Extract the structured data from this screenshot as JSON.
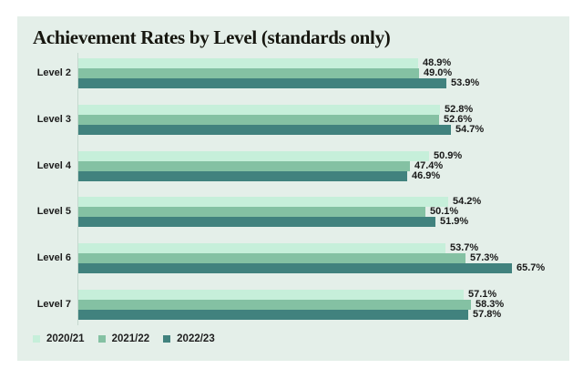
{
  "title": "Achievement Rates by Level (standards only)",
  "colors": {
    "page_bg": "#ffffff",
    "panel_bg": "#e4efe9",
    "axis_line": "#c6d8cf",
    "text": "#1c1c1c",
    "series": [
      "#c6efda",
      "#84c1a3",
      "#41827e"
    ]
  },
  "chart_data": {
    "type": "bar",
    "orientation": "horizontal",
    "title": "Achievement Rates by Level (standards only)",
    "categories": [
      "Level 2",
      "Level 3",
      "Level 4",
      "Level 5",
      "Level 6",
      "Level 7"
    ],
    "series": [
      {
        "name": "2020/21",
        "color": "#c6efda",
        "values": [
          48.9,
          52.8,
          50.9,
          54.2,
          53.7,
          57.1
        ],
        "labels": [
          "48.9%",
          "52.8%",
          "50.9%",
          "54.2%",
          "53.7%",
          "57.1%"
        ]
      },
      {
        "name": "2021/22",
        "color": "#84c1a3",
        "values": [
          49.0,
          52.6,
          47.4,
          50.1,
          57.3,
          58.3
        ],
        "labels": [
          "49.0%",
          "52.6%",
          "47.4%",
          "50.1%",
          "57.3%",
          "58.3%"
        ]
      },
      {
        "name": "2022/23",
        "color": "#41827e",
        "values": [
          53.9,
          54.7,
          46.9,
          51.9,
          65.7,
          57.8
        ],
        "labels": [
          "53.9%",
          "54.7%",
          "46.9%",
          "51.9%",
          "65.7%",
          "57.8%"
        ]
      }
    ],
    "value_label_format": "one_decimal_percent",
    "axis": {
      "tick_labels_visible": false,
      "gridlines": false
    },
    "legend_position": "bottom-left"
  },
  "legend": {
    "items": [
      {
        "label": "2020/21"
      },
      {
        "label": "2021/22"
      },
      {
        "label": "2022/23"
      }
    ]
  }
}
